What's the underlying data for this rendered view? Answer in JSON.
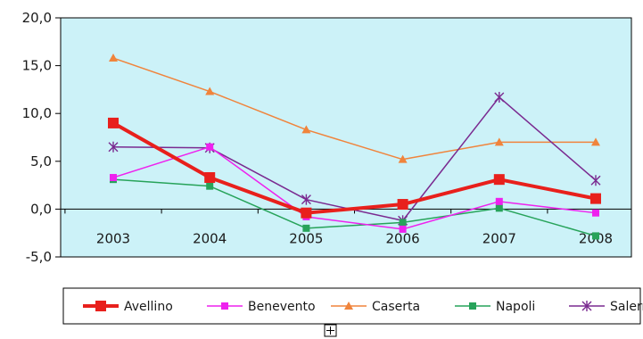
{
  "chart_data": {
    "type": "line",
    "title": "",
    "xlabel": "",
    "ylabel": "",
    "x": [
      "2003",
      "2004",
      "2005",
      "2006",
      "2007",
      "2008"
    ],
    "ylim": [
      -5,
      20
    ],
    "yticks": [
      "-5,0",
      "0,0",
      "5,0",
      "10,0",
      "15,0",
      "20,0"
    ],
    "ytick_values": [
      -5,
      0,
      5,
      10,
      15,
      20
    ],
    "grid": false,
    "plot_background": "#ccf2f8",
    "legend_position": "bottom",
    "series": [
      {
        "name": "Avellino",
        "color": "#e8201c",
        "marker": "square",
        "values": [
          9.0,
          3.3,
          -0.4,
          0.5,
          3.1,
          1.1
        ]
      },
      {
        "name": "Benevento",
        "color": "#ee22ee",
        "marker": "square",
        "values": [
          3.3,
          6.5,
          -0.8,
          -2.1,
          0.8,
          -0.4
        ]
      },
      {
        "name": "Caserta",
        "color": "#f0843c",
        "marker": "triangle",
        "values": [
          15.8,
          12.3,
          8.3,
          5.2,
          7.0,
          7.0
        ]
      },
      {
        "name": "Napoli",
        "color": "#27a35a",
        "marker": "square",
        "values": [
          3.1,
          2.4,
          -2.0,
          -1.4,
          0.1,
          -2.8
        ]
      },
      {
        "name": "Salerno",
        "color": "#7a2a90",
        "marker": "star",
        "values": [
          6.5,
          6.4,
          1.0,
          -1.2,
          11.7,
          3.0
        ]
      }
    ]
  }
}
